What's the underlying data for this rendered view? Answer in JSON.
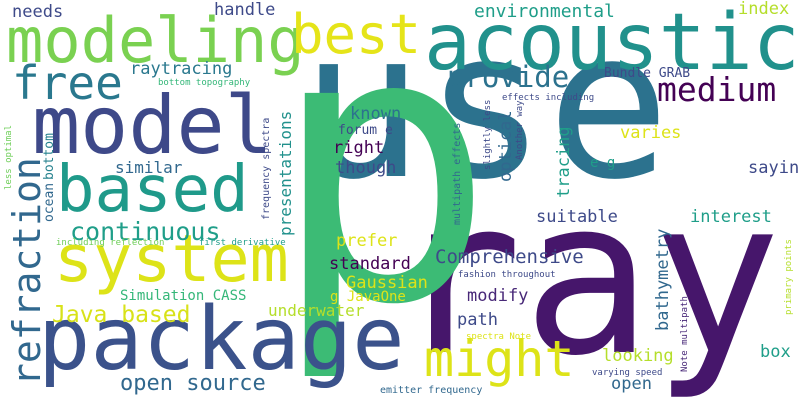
{
  "colors": {
    "background": "#ffffff",
    "palette": [
      "#440154",
      "#482878",
      "#3e4a89",
      "#31688e",
      "#26828e",
      "#1f9e89",
      "#35b779",
      "#6ece58",
      "#b5de2b",
      "#fde725"
    ]
  },
  "words": {
    "use": "use",
    "ray": "ray",
    "p": "p",
    "acoustic": "acoustic",
    "package": "package",
    "model": "model",
    "modeling": "modeling",
    "system": "system",
    "based": "based",
    "best": "best",
    "might": "might",
    "free": "free",
    "refraction": "refraction",
    "medium": "medium",
    "provide": "provide",
    "continuous": "continuous",
    "java_based": "Java based",
    "open_source": "open source",
    "comprehensive": "Comprehensive",
    "raytracing": "raytracing",
    "environmental": "environmental",
    "needs": "needs",
    "handle": "handle",
    "index": "index",
    "presentations": "presentations",
    "known": "known",
    "right": "right",
    "though": "though",
    "similar": "similar",
    "optical": "optical",
    "tracing": "tracing",
    "saying": "saying",
    "varies": "varies",
    "suitable": "suitable",
    "interest": "interest",
    "prefer": "prefer",
    "standard": "standard",
    "gaussian": "Gaussian",
    "modify": "modify",
    "path": "path",
    "bathymetry": "bathymetry",
    "underwater": "underwater",
    "simulation_cass": "Simulation CASS",
    "g_javaone": "g JavaOne",
    "looking": "looking",
    "open": "open",
    "box": "box",
    "bundle_grab": "Bundle GRAB",
    "forum_e": "forum e",
    "e_g": "e g",
    "bottom_topography": "bottom topography",
    "frequency_spectra": "frequency spectra",
    "less_optimal": "less optimal",
    "ocean": "ocean",
    "bottom": "bottom",
    "including_reflection": "including reflection",
    "first_derivative": "first derivative",
    "multipath_effects": "multipath effects",
    "slightly_less": "slightly less",
    "another_way": "Another way",
    "effects_including": "effects including",
    "fashion_throughout": "fashion throughout",
    "spectra_note": "spectra Note",
    "note_multipath": "Note multipath",
    "varying_speed": "varying speed",
    "emitter_frequency": "emitter frequency",
    "primary_points": "primary points"
  }
}
